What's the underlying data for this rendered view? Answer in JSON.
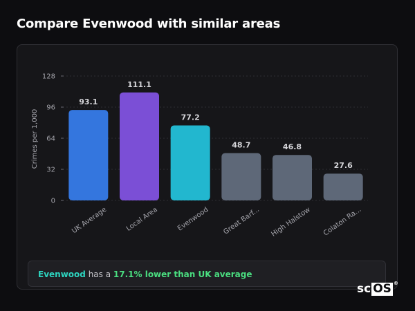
{
  "page": {
    "title": "Compare Evenwood with similar areas"
  },
  "chart_data": {
    "type": "bar",
    "ylabel": "Crimes per 1,000",
    "xlabel": "",
    "ylim": [
      0,
      128
    ],
    "yticks": [
      0,
      32,
      64,
      96,
      128
    ],
    "grid": "horizontal dotted",
    "categories": [
      "UK Average",
      "Local Area",
      "Evenwood",
      "Great Barf...",
      "High Halstow",
      "Colaton Ra..."
    ],
    "values": [
      93.1,
      111.1,
      77.2,
      48.7,
      46.8,
      27.6
    ],
    "value_labels": [
      "93.1",
      "111.1",
      "77.2",
      "48.7",
      "46.8",
      "27.6"
    ],
    "colors": [
      "#3476de",
      "#7b4fd6",
      "#22b7cf",
      "#5e6878",
      "#5e6878",
      "#5e6878"
    ]
  },
  "summary": {
    "area_name": "Evenwood",
    "middle": " has a ",
    "comparison": "17.1% lower than UK average"
  },
  "logo": {
    "prefix": "sc",
    "boxed": "OS",
    "mark": "®"
  }
}
